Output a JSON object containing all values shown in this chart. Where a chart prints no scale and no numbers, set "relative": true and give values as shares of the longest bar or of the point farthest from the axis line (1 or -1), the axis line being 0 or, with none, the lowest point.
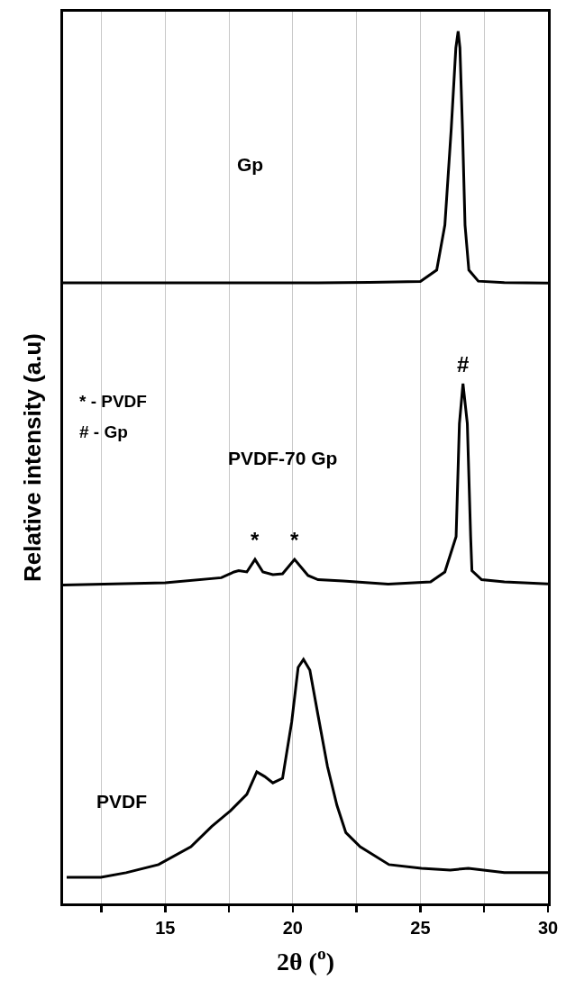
{
  "chart_data": [
    {
      "type": "line",
      "relative": true,
      "xlim": [
        11,
        30
      ],
      "xticks": [
        {
          "value": 12.5,
          "label": null
        },
        15,
        {
          "value": 17.5,
          "label": null
        },
        20,
        {
          "value": 22.5,
          "label": null
        },
        25,
        {
          "value": 27.5,
          "label": null
        },
        30
      ],
      "grid": "x",
      "tick_labels": false,
      "series": [
        {
          "name": "Gp",
          "color": "#000000",
          "x": [
            11,
            13,
            15,
            17,
            19,
            21,
            23,
            25,
            25.64,
            25.96,
            26.21,
            26.39,
            26.48,
            26.55,
            26.65,
            26.75,
            26.9,
            27.27,
            28.29,
            30
          ],
          "values": [
            0.094,
            0.094,
            0.094,
            0.094,
            0.094,
            0.094,
            0.096,
            0.099,
            0.14,
            0.302,
            0.649,
            0.94,
            1.0,
            0.94,
            0.649,
            0.302,
            0.14,
            0.1,
            0.095,
            0.093
          ]
        }
      ]
    },
    {
      "type": "line",
      "relative": true,
      "ylabel": "Relative intensity (a.u)",
      "xlim": [
        11,
        30
      ],
      "xticks": [
        {
          "value": 12.5,
          "label": null
        },
        15,
        {
          "value": 17.5,
          "label": null
        },
        20,
        {
          "value": 22.5,
          "label": null
        },
        25,
        {
          "value": 27.5,
          "label": null
        },
        30
      ],
      "grid": "x",
      "tick_labels": false,
      "series": [
        {
          "name": "PVDF-70 Gp",
          "color": "#000000",
          "x": [
            11,
            13,
            15,
            17.2,
            17.7,
            17.88,
            18.2,
            18.52,
            18.83,
            19.22,
            19.6,
            20.07,
            20.6,
            20.99,
            21.97,
            23.74,
            25.4,
            25.96,
            26.4,
            26.53,
            26.67,
            26.84,
            26.97,
            27.02,
            27.4,
            28.29,
            30
          ],
          "values": [
            0.095,
            0.1,
            0.105,
            0.128,
            0.154,
            0.16,
            0.154,
            0.21,
            0.154,
            0.142,
            0.146,
            0.21,
            0.138,
            0.119,
            0.113,
            0.099,
            0.109,
            0.154,
            0.313,
            0.82,
            1.0,
            0.82,
            0.313,
            0.16,
            0.119,
            0.109,
            0.1
          ]
        }
      ],
      "annotations": [
        "* - PVDF",
        "# - Gp",
        {
          "text": "#",
          "x": 26.67,
          "y": 1.0
        },
        {
          "text": "*",
          "x": 18.52,
          "y": 0.21
        },
        {
          "text": "*",
          "x": 20.07,
          "y": 0.21
        }
      ]
    },
    {
      "type": "line",
      "relative": true,
      "xlabel": "2θ ($^{o}$)",
      "xlim": [
        11,
        30
      ],
      "xticks": [
        {
          "value": 12.5,
          "label": null
        },
        15,
        {
          "value": 17.5,
          "label": null
        },
        20,
        {
          "value": 22.5,
          "label": null
        },
        25,
        {
          "value": 27.5,
          "label": null
        },
        30
      ],
      "grid": "x",
      "tick_labels": "x",
      "series": [
        {
          "name": "PVDF",
          "color": "#000000",
          "x": [
            11.14,
            12.48,
            13.47,
            14.74,
            16.01,
            16.82,
            17.56,
            18.2,
            18.59,
            18.9,
            19.22,
            19.6,
            19.96,
            20.21,
            20.42,
            20.67,
            20.99,
            21.36,
            21.73,
            22.08,
            22.64,
            23.77,
            25.04,
            26.17,
            26.88,
            28.29,
            30
          ],
          "values": [
            0.107,
            0.107,
            0.126,
            0.159,
            0.232,
            0.315,
            0.38,
            0.447,
            0.539,
            0.52,
            0.494,
            0.513,
            0.745,
            0.967,
            1.0,
            0.956,
            0.771,
            0.561,
            0.402,
            0.29,
            0.232,
            0.159,
            0.144,
            0.137,
            0.144,
            0.126,
            0.126
          ]
        }
      ]
    }
  ]
}
